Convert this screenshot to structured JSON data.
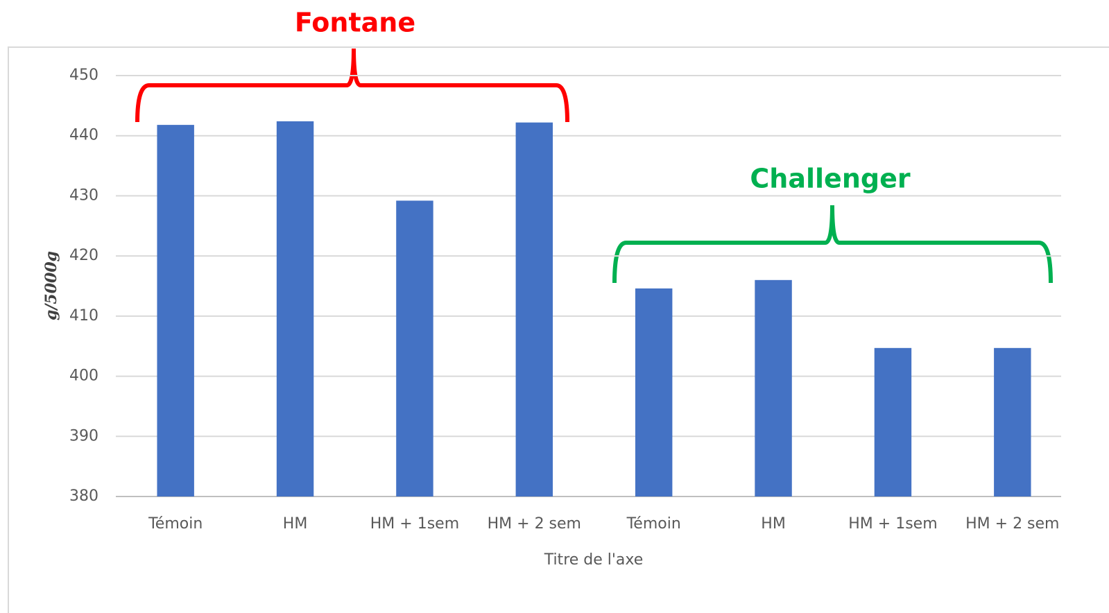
{
  "chart_data": {
    "type": "bar",
    "categories": [
      "Témoin",
      "HM",
      "HM + 1sem",
      "HM + 2 sem",
      "Témoin",
      "HM",
      "HM + 1sem",
      "HM + 2 sem"
    ],
    "values": [
      441.8,
      442.4,
      429.2,
      442.2,
      414.6,
      416,
      404.7,
      404.7
    ],
    "color": "#4472c4",
    "ylim": [
      380,
      450
    ],
    "yticks": [
      380,
      390,
      400,
      410,
      420,
      430,
      440,
      450
    ],
    "grid": true,
    "y_label": "g/5000g",
    "x_label": "Titre de l'axe",
    "annotations": [
      {
        "text": "Fontane",
        "color": "#ff0000"
      },
      {
        "text": "Challenger",
        "color": "#00b050"
      }
    ]
  }
}
